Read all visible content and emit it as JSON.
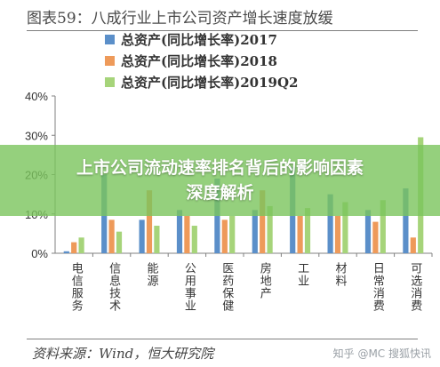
{
  "figure": {
    "title": "图表59：八成行业上市公司资产增长速度放缓",
    "source": "资料来源：Wind，恒大研究院",
    "watermark": "知乎 @MC 搜狐快讯"
  },
  "banner": {
    "line1": "上市公司流动速率排名背后的影响因素",
    "line2": "深度解析"
  },
  "colors": {
    "series_2017": "#5b8fc9",
    "series_2018": "#ee9a5a",
    "series_2019q2": "#a6d47a",
    "axis": "#808080",
    "text": "#333333"
  },
  "chart_data": {
    "type": "bar",
    "title": "",
    "xlabel": "",
    "ylabel": "",
    "ylim": [
      0,
      0.4
    ],
    "yticks": [
      "0%",
      "10%",
      "20%",
      "30%",
      "40%"
    ],
    "grid": false,
    "legend": "top",
    "categories": [
      "电信服务",
      "信息技术",
      "能源",
      "公用事业",
      "医药保健",
      "房地产",
      "工业",
      "材料",
      "日常消费",
      "可选消费"
    ],
    "series": [
      {
        "name": "总资产(同比增长率)2017",
        "color_key": "series_2017",
        "values": [
          0.005,
          0.2,
          0.085,
          0.11,
          0.19,
          0.11,
          0.22,
          0.15,
          0.11,
          0.165
        ]
      },
      {
        "name": "总资产(同比增长率)2018",
        "color_key": "series_2018",
        "values": [
          0.028,
          0.085,
          0.16,
          0.095,
          0.085,
          0.16,
          0.095,
          0.095,
          0.08,
          0.04
        ]
      },
      {
        "name": "总资产(同比增长率)2019Q2",
        "color_key": "series_2019q2",
        "values": [
          0.04,
          0.055,
          0.07,
          0.07,
          0.095,
          0.12,
          0.115,
          0.13,
          0.135,
          0.295
        ]
      }
    ]
  }
}
